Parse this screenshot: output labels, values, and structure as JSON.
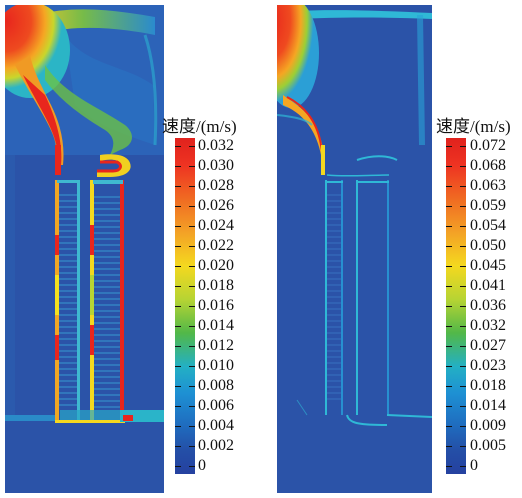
{
  "panels": [
    {
      "colorbar_title": "速度/(m/s)",
      "ticks": [
        "0.032",
        "0.030",
        "0.028",
        "0.026",
        "0.024",
        "0.022",
        "0.020",
        "0.018",
        "0.016",
        "0.014",
        "0.012",
        "0.010",
        "0.008",
        "0.006",
        "0.004",
        "0.002",
        "0"
      ]
    },
    {
      "colorbar_title": "速度/(m/s)",
      "ticks": [
        "0.072",
        "0.068",
        "0.063",
        "0.059",
        "0.054",
        "0.050",
        "0.045",
        "0.041",
        "0.036",
        "0.032",
        "0.027",
        "0.023",
        "0.018",
        "0.014",
        "0.009",
        "0.005",
        "0"
      ]
    }
  ],
  "colors": {
    "background_field": "#2b53a8",
    "high": "#e8261d",
    "mid_high": "#f5a623",
    "mid": "#f4e01f",
    "mid_low": "#4dbb4a",
    "low_cyan": "#27b6d6",
    "low": "#2b53a8"
  }
}
